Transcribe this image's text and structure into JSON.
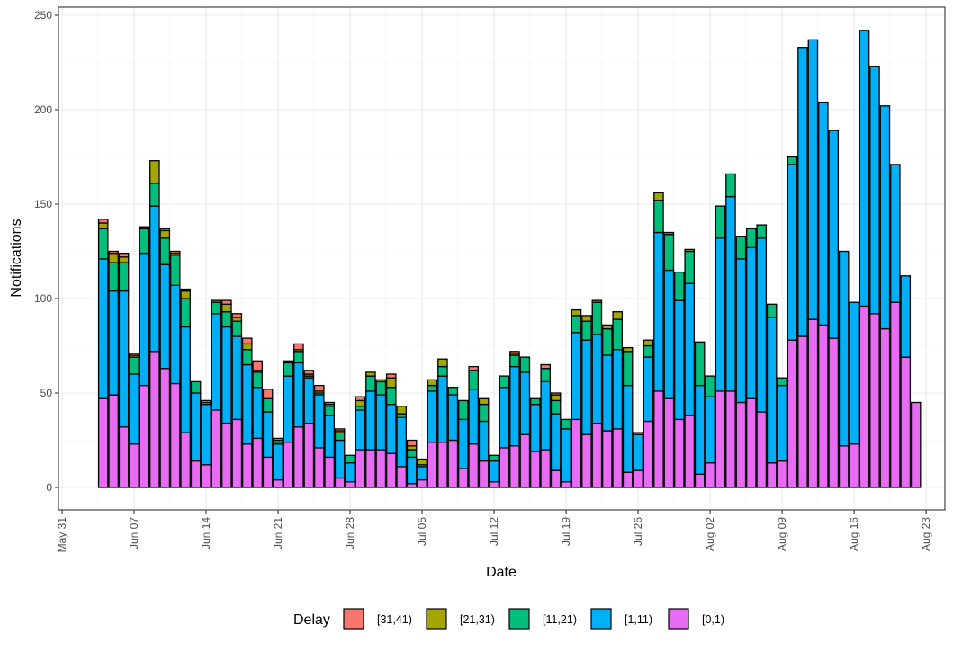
{
  "chart_data": {
    "type": "bar",
    "stacked": true,
    "xlabel": "Date",
    "ylabel": "Notifications",
    "ylim": [
      0,
      250
    ],
    "yticks": [
      0,
      50,
      100,
      150,
      200,
      250
    ],
    "xlim": [
      "2020-05-31",
      "2020-08-24"
    ],
    "xticks": [
      {
        "date": "2020-05-31",
        "label": "May 31"
      },
      {
        "date": "2020-06-07",
        "label": "Jun 07"
      },
      {
        "date": "2020-06-14",
        "label": "Jun 14"
      },
      {
        "date": "2020-06-21",
        "label": "Jun 21"
      },
      {
        "date": "2020-06-28",
        "label": "Jun 28"
      },
      {
        "date": "2020-07-05",
        "label": "Jul 05"
      },
      {
        "date": "2020-07-12",
        "label": "Jul 12"
      },
      {
        "date": "2020-07-19",
        "label": "Jul 19"
      },
      {
        "date": "2020-07-26",
        "label": "Jul 26"
      },
      {
        "date": "2020-08-02",
        "label": "Aug 02"
      },
      {
        "date": "2020-08-09",
        "label": "Aug 09"
      },
      {
        "date": "2020-08-16",
        "label": "Aug 16"
      },
      {
        "date": "2020-08-23",
        "label": "Aug 23"
      }
    ],
    "grid": true,
    "legend": {
      "title": "Delay",
      "placement": "bottom"
    },
    "first_date": "2020-06-04",
    "series": [
      {
        "name": "[0,1)",
        "color": "#E76BF3",
        "values": [
          47,
          49,
          32,
          23,
          54,
          72,
          63,
          55,
          29,
          14,
          12,
          41,
          34,
          36,
          23,
          26,
          16,
          4,
          24,
          32,
          34,
          21,
          16,
          5,
          3,
          20,
          20,
          20,
          18,
          11,
          2,
          4,
          24,
          24,
          25,
          10,
          23,
          14,
          3,
          21,
          22,
          28,
          19,
          20,
          9,
          3,
          36,
          28,
          34,
          30,
          31,
          8,
          9,
          35,
          51,
          47,
          36,
          38,
          7,
          13,
          51,
          51,
          45,
          47,
          40,
          13,
          14,
          78,
          80,
          89,
          86,
          79,
          22,
          23,
          96,
          92,
          84,
          98,
          69,
          45
        ]
      },
      {
        "name": "[1,11)",
        "color": "#00B0F6",
        "values": [
          74,
          55,
          72,
          37,
          70,
          77,
          55,
          52,
          56,
          36,
          32,
          51,
          51,
          44,
          42,
          27,
          24,
          19,
          35,
          34,
          24,
          28,
          22,
          20,
          10,
          21,
          31,
          29,
          26,
          26,
          14,
          7,
          27,
          35,
          24,
          26,
          29,
          21,
          11,
          32,
          42,
          33,
          25,
          36,
          30,
          28,
          46,
          50,
          47,
          40,
          42,
          46,
          19,
          34,
          84,
          68,
          63,
          70,
          47,
          35,
          81,
          103,
          76,
          80,
          92,
          77,
          40,
          93,
          153,
          148,
          118,
          110,
          103,
          75,
          146,
          131,
          118,
          73,
          43,
          0
        ]
      },
      {
        "name": "[11,21)",
        "color": "#00BF7D",
        "values": [
          16,
          15,
          15,
          9,
          13,
          12,
          14,
          16,
          15,
          6,
          0,
          6,
          8,
          8,
          8,
          8,
          7,
          1,
          7,
          6,
          1,
          1,
          5,
          4,
          4,
          2,
          8,
          7,
          9,
          2,
          4,
          1,
          3,
          5,
          4,
          10,
          10,
          9,
          3,
          6,
          6,
          8,
          3,
          7,
          7,
          5,
          9,
          10,
          17,
          14,
          16,
          18,
          0,
          6,
          17,
          19,
          15,
          17,
          23,
          11,
          17,
          12,
          12,
          10,
          7,
          7,
          4,
          4,
          0,
          0,
          0,
          0,
          0,
          0,
          0,
          0,
          0,
          0,
          0,
          0
        ]
      },
      {
        "name": "[21,31)",
        "color": "#A3A500",
        "values": [
          3,
          5,
          3,
          1,
          1,
          12,
          4,
          1,
          4,
          0,
          1,
          1,
          4,
          2,
          3,
          1,
          0,
          1,
          1,
          1,
          1,
          1,
          1,
          1,
          0,
          3,
          2,
          1,
          5,
          4,
          2,
          3,
          3,
          4,
          0,
          0,
          0,
          3,
          0,
          0,
          1,
          0,
          0,
          0,
          3,
          0,
          3,
          3,
          1,
          2,
          4,
          2,
          0,
          3,
          4,
          1,
          0,
          1,
          0,
          0,
          0,
          0,
          0,
          0,
          0,
          0,
          0,
          0,
          0,
          0,
          0,
          0,
          0,
          0,
          0,
          0,
          0,
          0,
          0,
          0
        ]
      },
      {
        "name": "[31,41)",
        "color": "#F8766D",
        "values": [
          2,
          1,
          2,
          1,
          0,
          0,
          1,
          1,
          1,
          0,
          1,
          0,
          2,
          2,
          3,
          5,
          5,
          1,
          0,
          3,
          2,
          3,
          1,
          1,
          0,
          2,
          0,
          0,
          2,
          0,
          3,
          0,
          0,
          0,
          0,
          0,
          2,
          0,
          0,
          0,
          1,
          0,
          0,
          2,
          1,
          0,
          0,
          0,
          0,
          0,
          0,
          0,
          1,
          0,
          0,
          0,
          0,
          0,
          0,
          0,
          0,
          0,
          0,
          0,
          0,
          0,
          0,
          0,
          0,
          0,
          0,
          0,
          0,
          0,
          0,
          0,
          0,
          0,
          0,
          0
        ]
      }
    ]
  }
}
